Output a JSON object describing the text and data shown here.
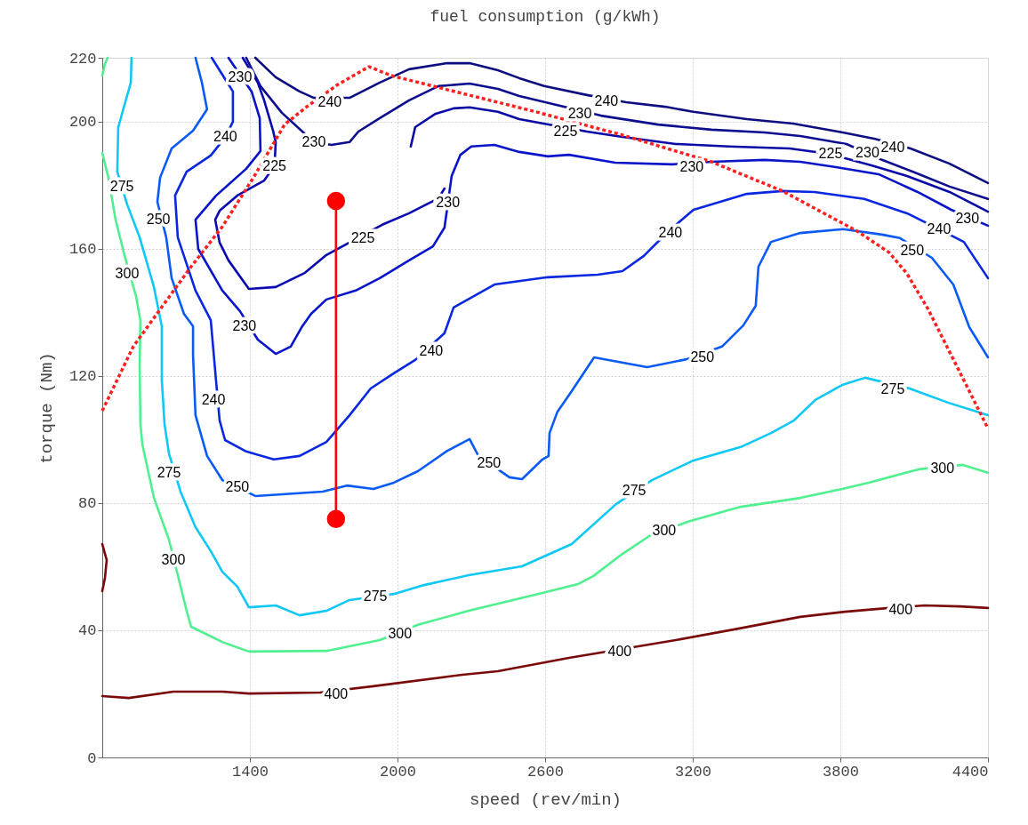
{
  "chart_data": {
    "type": "line",
    "title": "fuel consumption (g/kWh)",
    "xlabel": "speed (rev/min)",
    "ylabel": "torque (Nm)",
    "xlim": [
      800,
      4400
    ],
    "ylim": [
      0,
      220
    ],
    "xticks": [
      1400,
      2000,
      2600,
      3200,
      3800,
      4400
    ],
    "yticks": [
      0,
      40,
      80,
      120,
      160,
      200,
      220
    ],
    "grid": true,
    "series": [
      {
        "color": "#7a0a0a",
        "x": [
          800,
          908,
          1089,
          1288,
          1396,
          1685,
          1902,
          2264,
          2408,
          2697,
          2914,
          3131,
          3385,
          3637,
          3818,
          3998,
          4143,
          4288,
          4400
        ],
        "values": [
          19.3,
          18.7,
          20.7,
          20.7,
          20.1,
          20.4,
          22.4,
          26,
          27.1,
          31.3,
          34.1,
          36.9,
          40.5,
          44.2,
          45.8,
          47,
          47.8,
          47.5,
          47
        ]
      },
      {
        "color": "#7a0a0a",
        "x": [
          800,
          818,
          811,
          800
        ],
        "values": [
          67.1,
          62.1,
          56.5,
          52.3
        ]
      },
      {
        "color": "#50f090",
        "x": [
          800,
          825,
          854,
          890,
          937,
          955,
          952,
          955,
          963,
          1010,
          1071,
          1143,
          1161,
          1288,
          1396,
          1711,
          1928,
          2083,
          2289,
          2589,
          2733,
          2795,
          2914,
          3023,
          3178,
          3395,
          3637,
          3807,
          3915,
          4118,
          4298,
          4400
        ],
        "values": [
          190.1,
          182.3,
          169.1,
          158,
          145.1,
          137.5,
          123.6,
          104.8,
          98.4,
          81.6,
          68.5,
          46.1,
          41.1,
          36.3,
          33.3,
          33.5,
          36.9,
          41.7,
          46.1,
          51.7,
          54.5,
          57,
          64,
          69.6,
          74.1,
          78.8,
          81.6,
          84.4,
          86.4,
          90.6,
          92,
          89.5
        ]
      },
      {
        "color": "#50f090",
        "x": [
          800,
          811,
          822
        ],
        "values": [
          214.4,
          218.1,
          220
        ]
      },
      {
        "color": "#10c8f5",
        "x": [
          919,
          916,
          865,
          861,
          901,
          952,
          1010,
          1042,
          1042,
          1053,
          1071,
          1118,
          1179,
          1241,
          1288,
          1349,
          1396,
          1505,
          1602,
          1711,
          1805,
          1985,
          2108,
          2289,
          2506,
          2708,
          2889,
          3034,
          3203,
          3395,
          3518,
          3612,
          3698,
          3807,
          3901,
          4081,
          4240,
          4400
        ],
        "values": [
          220,
          212.2,
          198.2,
          184.2,
          173.9,
          163.5,
          147.9,
          135.6,
          118.8,
          104.8,
          95.6,
          83.6,
          72.4,
          64.9,
          58.4,
          53.7,
          47.2,
          47.8,
          44.7,
          46.1,
          49.5,
          51.4,
          54.2,
          57.3,
          60.1,
          67.1,
          79.7,
          87.2,
          93.4,
          97.6,
          102,
          106,
          112.4,
          117.1,
          119.4,
          116,
          111.5,
          107.6
        ]
      },
      {
        "color": "#0a5af5",
        "x": [
          1179,
          1205,
          1226,
          1169,
          1082,
          1035,
          1024,
          1060,
          1082,
          1132,
          1169,
          1169,
          1179,
          1226,
          1288,
          1422,
          1696,
          1794,
          1902,
          1985,
          2083,
          2202,
          2293,
          2329,
          2455,
          2506,
          2589,
          2614,
          2618,
          2650,
          2708,
          2799,
          3015,
          3174,
          3319,
          3406,
          3456,
          3467,
          3518,
          3637,
          3811,
          3969,
          4042,
          4172,
          4259,
          4324,
          4400
        ],
        "values": [
          220,
          212.2,
          203.8,
          197.1,
          191.5,
          182.3,
          174.7,
          163.5,
          150.7,
          139.5,
          135.6,
          126.4,
          107.6,
          94.8,
          87.2,
          82.2,
          83.6,
          85.5,
          84.4,
          86.4,
          90,
          96.4,
          100.1,
          94.8,
          88.1,
          87.5,
          93.7,
          94.8,
          102,
          108.7,
          115.2,
          125.8,
          122.7,
          125.2,
          129.2,
          135.9,
          142,
          154.3,
          162.1,
          164.9,
          166.1,
          164.4,
          163.3,
          157.1,
          148.7,
          135.3,
          125.8
        ]
      },
      {
        "color": "#0a28e0",
        "x": [
          1245,
          1331,
          1331,
          1300,
          1241,
          1143,
          1096,
          1107,
          1179,
          1241,
          1263,
          1277,
          1299,
          1385,
          1497,
          1602,
          1711,
          1805,
          1891,
          1985,
          2072,
          2191,
          2228,
          2394,
          2611,
          2813,
          2914,
          3001,
          3102,
          3203,
          3420,
          3565,
          3695,
          3897,
          4071,
          4201,
          4302,
          4400
        ],
        "values": [
          220,
          209.4,
          199.9,
          195,
          189.3,
          184.2,
          176.7,
          163.5,
          146.8,
          137.5,
          118,
          106,
          99.8,
          96.2,
          93.7,
          94.8,
          99.2,
          107.6,
          116,
          120.8,
          125,
          133.4,
          141.5,
          148.7,
          151,
          151.8,
          152.9,
          157.7,
          165.5,
          172.2,
          177.2,
          178.1,
          177.8,
          175.6,
          171.1,
          166.1,
          162.1,
          150.7
        ]
      },
      {
        "color": "#0d0d80",
        "x": [
          1422,
          1505,
          1602,
          1660,
          1805,
          1928,
          2047,
          2202,
          2293,
          2408,
          2495,
          2596,
          2770,
          2929,
          3088,
          3203,
          3420,
          3608,
          3810,
          3941,
          4085,
          4244,
          4400
        ],
        "values": [
          220,
          213.9,
          209.4,
          207.4,
          207.4,
          212.2,
          216.4,
          218.3,
          218.3,
          216.1,
          213.6,
          211.1,
          208.3,
          206,
          204.6,
          203,
          200.7,
          199.3,
          196.5,
          194.5,
          191.5,
          186.7,
          180.6
        ]
      },
      {
        "color": "#0a14c8",
        "x": [
          1313,
          1407,
          1440,
          1443,
          1385,
          1263,
          1179,
          1190,
          1288,
          1360,
          1432,
          1505,
          1566,
          1613,
          1649,
          1711,
          1830,
          1928,
          2047,
          2144,
          2191,
          2220,
          2256,
          2300,
          2394,
          2495,
          2611,
          2697,
          2885,
          3117,
          3276,
          3492,
          3637,
          3782,
          3955,
          4114,
          4251,
          4400
        ],
        "values": [
          220,
          209.4,
          201,
          190.7,
          185.1,
          176.7,
          169.1,
          159.9,
          146.8,
          140.3,
          131.4,
          126.9,
          129.2,
          135.6,
          139.5,
          144,
          146.8,
          150.7,
          156.3,
          160.7,
          166.6,
          182.8,
          189.5,
          192.1,
          192.6,
          190.4,
          189,
          189.5,
          187,
          186.5,
          187.3,
          187.9,
          187.3,
          185.6,
          183.4,
          177.8,
          172.2,
          167.2
        ]
      },
      {
        "color": "#0d0d90",
        "x": [
          1385,
          1443,
          1530,
          1660,
          1732,
          1805,
          1841,
          1928,
          2047,
          2166,
          2293,
          2408,
          2495,
          2827,
          3059,
          3276,
          3492,
          3637,
          3825,
          3969,
          4100,
          4244,
          4400
        ],
        "values": [
          220,
          211.1,
          202.7,
          193.5,
          192.6,
          193.5,
          196.8,
          201,
          206.6,
          211.1,
          211.9,
          210.2,
          208,
          201.8,
          199,
          197.4,
          196.5,
          195.4,
          192.9,
          187.9,
          184,
          179.5,
          175.6
        ]
      },
      {
        "color": "#0a0ab0",
        "x": [
          1371,
          1432,
          1458,
          1494,
          1505,
          1500,
          1458,
          1349,
          1277,
          1259,
          1277,
          1313,
          1396,
          1505,
          1624,
          1711,
          1938,
          2047,
          2166,
          2191
        ],
        "values": [
          220,
          212.2,
          206.6,
          197.1,
          193.5,
          186,
          181.4,
          176.7,
          171.9,
          169.1,
          161.9,
          156.3,
          147.3,
          147.9,
          152.4,
          158,
          167.5,
          171.1,
          175.8,
          178.9
        ]
      },
      {
        "color": "#0a0aa6",
        "x": [
          2054,
          2072,
          2155,
          2228,
          2293,
          2408,
          2495,
          2770,
          2914,
          3131,
          3348,
          3594,
          3753,
          3926,
          4071,
          4244,
          4400
        ],
        "values": [
          192.1,
          198.2,
          202.4,
          204.1,
          204.4,
          203,
          200.7,
          196.8,
          195.1,
          192.9,
          192.1,
          191.5,
          189.8,
          186.2,
          182.8,
          177.8,
          171.6
        ]
      },
      {
        "color": "#ff2020",
        "line_style": "dotted",
        "x": [
          800,
          926,
          1035,
          1161,
          1288,
          1414,
          1541,
          1631,
          1758,
          1884,
          1975,
          2191,
          2553,
          2914,
          3276,
          3565,
          3868,
          3998,
          4071,
          4157,
          4324,
          4400
        ],
        "values": [
          109,
          129.2,
          140.9,
          154.3,
          166.9,
          182.3,
          199,
          204.6,
          211.6,
          217.2,
          214.4,
          210.2,
          203.2,
          195.7,
          187.3,
          178.1,
          165.5,
          158.8,
          152.1,
          140.9,
          115.2,
          103.4
        ]
      },
      {
        "color": "#ff0000",
        "marker": "circle",
        "x": [
          1750,
          1750
        ],
        "values": [
          175,
          75
        ]
      }
    ],
    "annotations": [
      {
        "text": "240",
        "x": 1725,
        "y": 206
      },
      {
        "text": "230",
        "x": 1360,
        "y": 213.9
      },
      {
        "text": "230",
        "x": 1660,
        "y": 193.5
      },
      {
        "text": "225",
        "x": 1500,
        "y": 186
      },
      {
        "text": "240",
        "x": 1300,
        "y": 195
      },
      {
        "text": "225",
        "x": 1859,
        "y": 163.3
      },
      {
        "text": "230",
        "x": 1378,
        "y": 135.6
      },
      {
        "text": "240",
        "x": 1252,
        "y": 112.4
      },
      {
        "text": "250",
        "x": 1028,
        "y": 169.1
      },
      {
        "text": "275",
        "x": 880,
        "y": 179.5
      },
      {
        "text": "300",
        "x": 901,
        "y": 152.1
      },
      {
        "text": "250",
        "x": 1349,
        "y": 85
      },
      {
        "text": "275",
        "x": 1071,
        "y": 89.5
      },
      {
        "text": "300",
        "x": 1089,
        "y": 62.1
      },
      {
        "text": "240",
        "x": 2137,
        "y": 127.8
      },
      {
        "text": "230",
        "x": 2205,
        "y": 174.5
      },
      {
        "text": "230",
        "x": 3196,
        "y": 185.6
      },
      {
        "text": "225",
        "x": 2683,
        "y": 196.8
      },
      {
        "text": "230",
        "x": 2741,
        "y": 202.4
      },
      {
        "text": "240",
        "x": 2849,
        "y": 206.3
      },
      {
        "text": "240",
        "x": 3109,
        "y": 164.9
      },
      {
        "text": "250",
        "x": 3239,
        "y": 125.8
      },
      {
        "text": "250",
        "x": 2372,
        "y": 92.5
      },
      {
        "text": "240",
        "x": 4013,
        "y": 191.8
      },
      {
        "text": "230",
        "x": 3910,
        "y": 190
      },
      {
        "text": "225",
        "x": 3760,
        "y": 189.7
      },
      {
        "text": "230",
        "x": 4316,
        "y": 169.4
      },
      {
        "text": "240",
        "x": 4201,
        "y": 166.1
      },
      {
        "text": "250",
        "x": 4092,
        "y": 159.4
      },
      {
        "text": "275",
        "x": 1910,
        "y": 50.6
      },
      {
        "text": "300",
        "x": 2010,
        "y": 38.9
      },
      {
        "text": "400",
        "x": 1750,
        "y": 19.8
      },
      {
        "text": "275",
        "x": 2962,
        "y": 83.9
      },
      {
        "text": "300",
        "x": 3084,
        "y": 71.3
      },
      {
        "text": "400",
        "x": 2903,
        "y": 33.3
      },
      {
        "text": "275",
        "x": 4013,
        "y": 115.7
      },
      {
        "text": "300",
        "x": 4215,
        "y": 90.9
      },
      {
        "text": "400",
        "x": 4045,
        "y": 46.4
      }
    ]
  }
}
